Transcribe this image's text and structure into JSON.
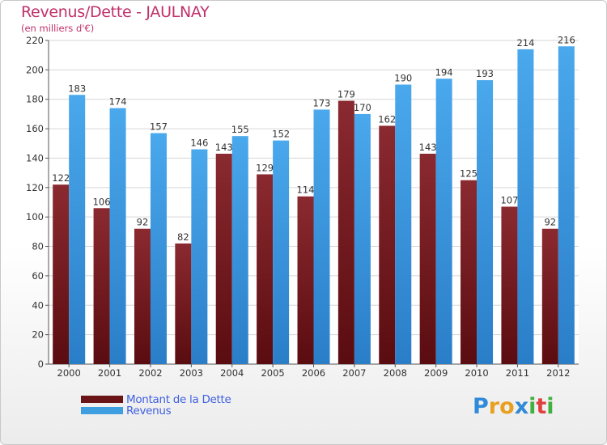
{
  "header": {
    "title": "Revenus/Dette - JAULNAY",
    "subtitle": "(en milliers d'€)"
  },
  "chart_data": {
    "type": "bar",
    "categories": [
      "2000",
      "2001",
      "2002",
      "2003",
      "2004",
      "2005",
      "2006",
      "2007",
      "2008",
      "2009",
      "2010",
      "2011",
      "2012"
    ],
    "series": [
      {
        "name": "Montant de la Dette",
        "values": [
          122,
          106,
          92,
          82,
          143,
          129,
          114,
          179,
          162,
          143,
          125,
          107,
          92
        ],
        "color": "#7a1f24"
      },
      {
        "name": "Revenus",
        "values": [
          183,
          174,
          157,
          146,
          155,
          152,
          173,
          170,
          190,
          194,
          193,
          214,
          216
        ],
        "color": "#3e9ee0"
      }
    ],
    "ylim": [
      0,
      220
    ],
    "yticks": [
      0,
      20,
      40,
      60,
      80,
      100,
      120,
      140,
      160,
      180,
      200,
      220
    ],
    "grid": true,
    "legend_position": "bottom-left"
  },
  "logo": {
    "letters": [
      "P",
      "r",
      "o",
      "x",
      "i",
      "t",
      "i"
    ],
    "colors": [
      "#2f8ad8",
      "#e8a020",
      "#e8a020",
      "#2f8ad8",
      "#40b040",
      "#e04040",
      "#40b040"
    ]
  },
  "colors": {
    "title": "#c0306a",
    "legend_text": "#4060e0"
  }
}
